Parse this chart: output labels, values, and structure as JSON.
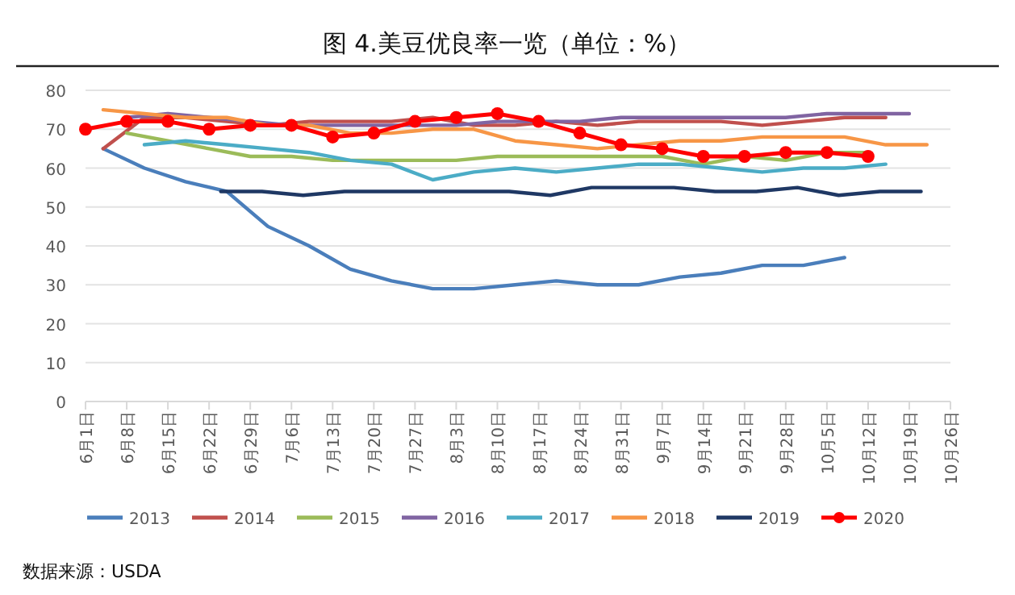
{
  "chart_data": {
    "type": "line",
    "title": "图 4.美豆优良率一览（单位：%）",
    "annotations": [
      "数据来源：USDA"
    ],
    "xlim": [
      "--06-01",
      "--10-26"
    ],
    "xticks": [
      {
        "value": "--06-01",
        "label": "6月1日"
      },
      {
        "value": "--06-08",
        "label": "6月8日"
      },
      {
        "value": "--06-15",
        "label": "6月15日"
      },
      {
        "value": "--06-22",
        "label": "6月22日"
      },
      {
        "value": "--06-29",
        "label": "6月29日"
      },
      {
        "value": "--07-06",
        "label": "7月6日"
      },
      {
        "value": "--07-13",
        "label": "7月13日"
      },
      {
        "value": "--07-20",
        "label": "7月20日"
      },
      {
        "value": "--07-27",
        "label": "7月27日"
      },
      {
        "value": "--08-03",
        "label": "8月3日"
      },
      {
        "value": "--08-10",
        "label": "8月10日"
      },
      {
        "value": "--08-17",
        "label": "8月17日"
      },
      {
        "value": "--08-24",
        "label": "8月24日"
      },
      {
        "value": "--08-31",
        "label": "8月31日"
      },
      {
        "value": "--09-07",
        "label": "9月7日"
      },
      {
        "value": "--09-14",
        "label": "9月14日"
      },
      {
        "value": "--09-21",
        "label": "9月21日"
      },
      {
        "value": "--09-28",
        "label": "9月28日"
      },
      {
        "value": "--10-05",
        "label": "10月5日"
      },
      {
        "value": "--10-12",
        "label": "10月12日"
      },
      {
        "value": "--10-19",
        "label": "10月19日"
      },
      {
        "value": "--10-26",
        "label": "10月26日"
      }
    ],
    "ylim": [
      0,
      80
    ],
    "yticks": [
      0,
      10,
      20,
      30,
      40,
      50,
      60,
      70,
      80
    ],
    "grid": "y",
    "legend": "bottom",
    "series": [
      {
        "name": "2013",
        "color": "#4a7ebb",
        "marker": "none",
        "x": [
          "--06-04",
          "--06-11",
          "--06-18",
          "--06-25",
          "--07-02",
          "--07-09",
          "--07-16",
          "--07-23",
          "--07-30",
          "--08-06",
          "--08-13",
          "--08-20",
          "--08-27",
          "--09-03",
          "--09-10",
          "--09-17",
          "--09-24",
          "--10-01",
          "--10-08"
        ],
        "values": [
          65,
          60,
          56.5,
          54,
          45,
          40,
          34,
          31,
          29,
          29,
          30,
          31,
          30,
          30,
          32,
          33,
          35,
          35,
          37
        ]
      },
      {
        "name": "2014",
        "color": "#c0504d",
        "marker": "none",
        "x": [
          "--06-04",
          "--06-11",
          "--06-18",
          "--06-25",
          "--07-02",
          "--07-09",
          "--07-16",
          "--07-23",
          "--07-30",
          "--08-06",
          "--08-13",
          "--08-20",
          "--08-27",
          "--09-03",
          "--09-10",
          "--09-17",
          "--09-24",
          "--10-01",
          "--10-08",
          "--10-15"
        ],
        "values": [
          65,
          73,
          73,
          72,
          71,
          72,
          72,
          72,
          73,
          71,
          71,
          72,
          71,
          72,
          72,
          72,
          71,
          72,
          73,
          73
        ]
      },
      {
        "name": "2015",
        "color": "#9bbb59",
        "marker": "none",
        "x": [
          "--06-08",
          "--06-15",
          "--06-22",
          "--06-29",
          "--07-06",
          "--07-13",
          "--07-20",
          "--07-27",
          "--08-03",
          "--08-10",
          "--08-17",
          "--08-24",
          "--08-31",
          "--09-07",
          "--09-14",
          "--09-21",
          "--09-28",
          "--10-05",
          "--10-12"
        ],
        "values": [
          69,
          67,
          65,
          63,
          63,
          62,
          62,
          62,
          62,
          63,
          63,
          63,
          63,
          63,
          61,
          63,
          62,
          64,
          64
        ]
      },
      {
        "name": "2016",
        "color": "#8064a2",
        "marker": "none",
        "x": [
          "--06-08",
          "--06-15",
          "--06-22",
          "--06-29",
          "--07-06",
          "--07-13",
          "--07-20",
          "--07-27",
          "--08-03",
          "--08-10",
          "--08-17",
          "--08-24",
          "--08-31",
          "--09-07",
          "--09-14",
          "--09-21",
          "--09-28",
          "--10-05",
          "--10-12",
          "--10-19"
        ],
        "values": [
          73,
          74,
          73,
          72,
          71,
          71,
          71,
          71,
          71,
          72,
          72,
          72,
          73,
          73,
          73,
          73,
          73,
          74,
          74,
          74
        ]
      },
      {
        "name": "2017",
        "color": "#4bacc6",
        "marker": "none",
        "x": [
          "--06-11",
          "--06-18",
          "--06-25",
          "--07-02",
          "--07-09",
          "--07-16",
          "--07-23",
          "--07-30",
          "--08-06",
          "--08-13",
          "--08-20",
          "--08-27",
          "--09-03",
          "--09-10",
          "--09-17",
          "--09-24",
          "--10-01",
          "--10-08",
          "--10-15"
        ],
        "values": [
          66,
          67,
          66,
          65,
          64,
          62,
          61,
          57,
          59,
          60,
          59,
          60,
          61,
          61,
          60,
          59,
          60,
          60,
          61
        ]
      },
      {
        "name": "2018",
        "color": "#f79646",
        "marker": "none",
        "x": [
          "--06-04",
          "--06-11",
          "--06-18",
          "--06-25",
          "--07-02",
          "--07-09",
          "--07-16",
          "--07-23",
          "--07-30",
          "--08-06",
          "--08-13",
          "--08-20",
          "--08-27",
          "--09-03",
          "--09-10",
          "--09-17",
          "--09-24",
          "--10-01",
          "--10-08",
          "--10-15",
          "--10-22"
        ],
        "values": [
          75,
          74,
          73,
          73,
          71,
          71,
          69,
          69,
          70,
          70,
          67,
          66,
          65,
          66,
          67,
          67,
          68,
          68,
          68,
          66,
          66
        ]
      },
      {
        "name": "2019",
        "color": "#1f3864",
        "marker": "none",
        "x": [
          "--06-24",
          "--07-01",
          "--07-08",
          "--07-15",
          "--07-22",
          "--07-29",
          "--08-05",
          "--08-12",
          "--08-19",
          "--08-26",
          "--09-02",
          "--09-09",
          "--09-16",
          "--09-23",
          "--09-30",
          "--10-07",
          "--10-14",
          "--10-21"
        ],
        "values": [
          54,
          54,
          53,
          54,
          54,
          54,
          54,
          54,
          53,
          55,
          55,
          55,
          54,
          54,
          55,
          53,
          54,
          54
        ]
      },
      {
        "name": "2020",
        "color": "#ff0000",
        "marker": "circle",
        "x": [
          "--06-01",
          "--06-08",
          "--06-15",
          "--06-22",
          "--06-29",
          "--07-06",
          "--07-13",
          "--07-20",
          "--07-27",
          "--08-03",
          "--08-10",
          "--08-17",
          "--08-24",
          "--08-31",
          "--09-07",
          "--09-14",
          "--09-21",
          "--09-28",
          "--10-05",
          "--10-12"
        ],
        "values": [
          70,
          72,
          72,
          70,
          71,
          71,
          68,
          69,
          72,
          73,
          74,
          72,
          69,
          66,
          65,
          63,
          63,
          64,
          64,
          63
        ]
      }
    ]
  }
}
